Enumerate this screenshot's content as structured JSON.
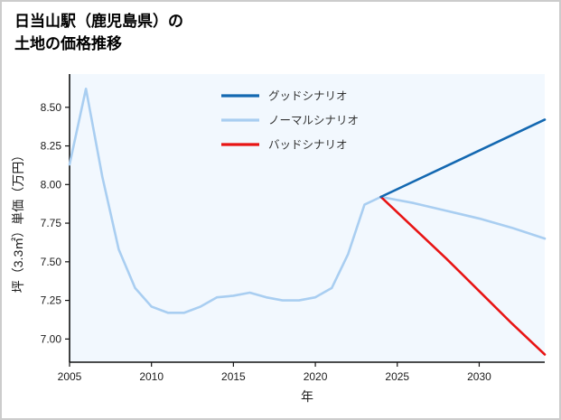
{
  "page": {
    "title_lines": [
      "日当山駅（鹿児島県）の",
      "土地の価格推移"
    ]
  },
  "chart_data": {
    "type": "line",
    "title": "日当山駅（鹿児島県）の土地の価格推移",
    "xlabel": "年",
    "ylabel": "坪（3.3㎡）単価（万円）",
    "xlim": [
      2005,
      2034
    ],
    "ylim": [
      6.85,
      8.68
    ],
    "xticks": [
      2005,
      2010,
      2015,
      2020,
      2025,
      2030
    ],
    "yticks": [
      "7.00",
      "7.25",
      "7.50",
      "7.75",
      "8.00",
      "8.25",
      "8.50"
    ],
    "grid": false,
    "legend_position": "upper-center-inside",
    "colors": {
      "good": "#1368b1",
      "normal": "#a9cef1",
      "bad": "#e81414",
      "axis": "#111111",
      "plot_background": "#f2f8fe"
    },
    "series": [
      {
        "name": "グッドシナリオ",
        "role": "good-scenario",
        "color": "#1368b1",
        "x": [
          2024,
          2026,
          2028,
          2030,
          2032,
          2034
        ],
        "values": [
          7.92,
          8.02,
          8.12,
          8.22,
          8.32,
          8.42
        ]
      },
      {
        "name": "ノーマルシナリオ",
        "role": "normal-scenario-with-history",
        "color": "#a9cef1",
        "x": [
          2005,
          2006,
          2007,
          2008,
          2009,
          2010,
          2011,
          2012,
          2013,
          2014,
          2015,
          2016,
          2017,
          2018,
          2019,
          2020,
          2021,
          2022,
          2023,
          2024,
          2026,
          2028,
          2030,
          2032,
          2034
        ],
        "values": [
          8.13,
          8.62,
          8.05,
          7.58,
          7.33,
          7.21,
          7.17,
          7.17,
          7.21,
          7.27,
          7.28,
          7.3,
          7.27,
          7.25,
          7.25,
          7.27,
          7.33,
          7.55,
          7.87,
          7.92,
          7.88,
          7.83,
          7.78,
          7.72,
          7.65
        ]
      },
      {
        "name": "バッドシナリオ",
        "role": "bad-scenario",
        "color": "#e81414",
        "x": [
          2024,
          2026,
          2028,
          2030,
          2032,
          2034
        ],
        "values": [
          7.92,
          7.72,
          7.52,
          7.31,
          7.1,
          6.9
        ]
      }
    ]
  }
}
